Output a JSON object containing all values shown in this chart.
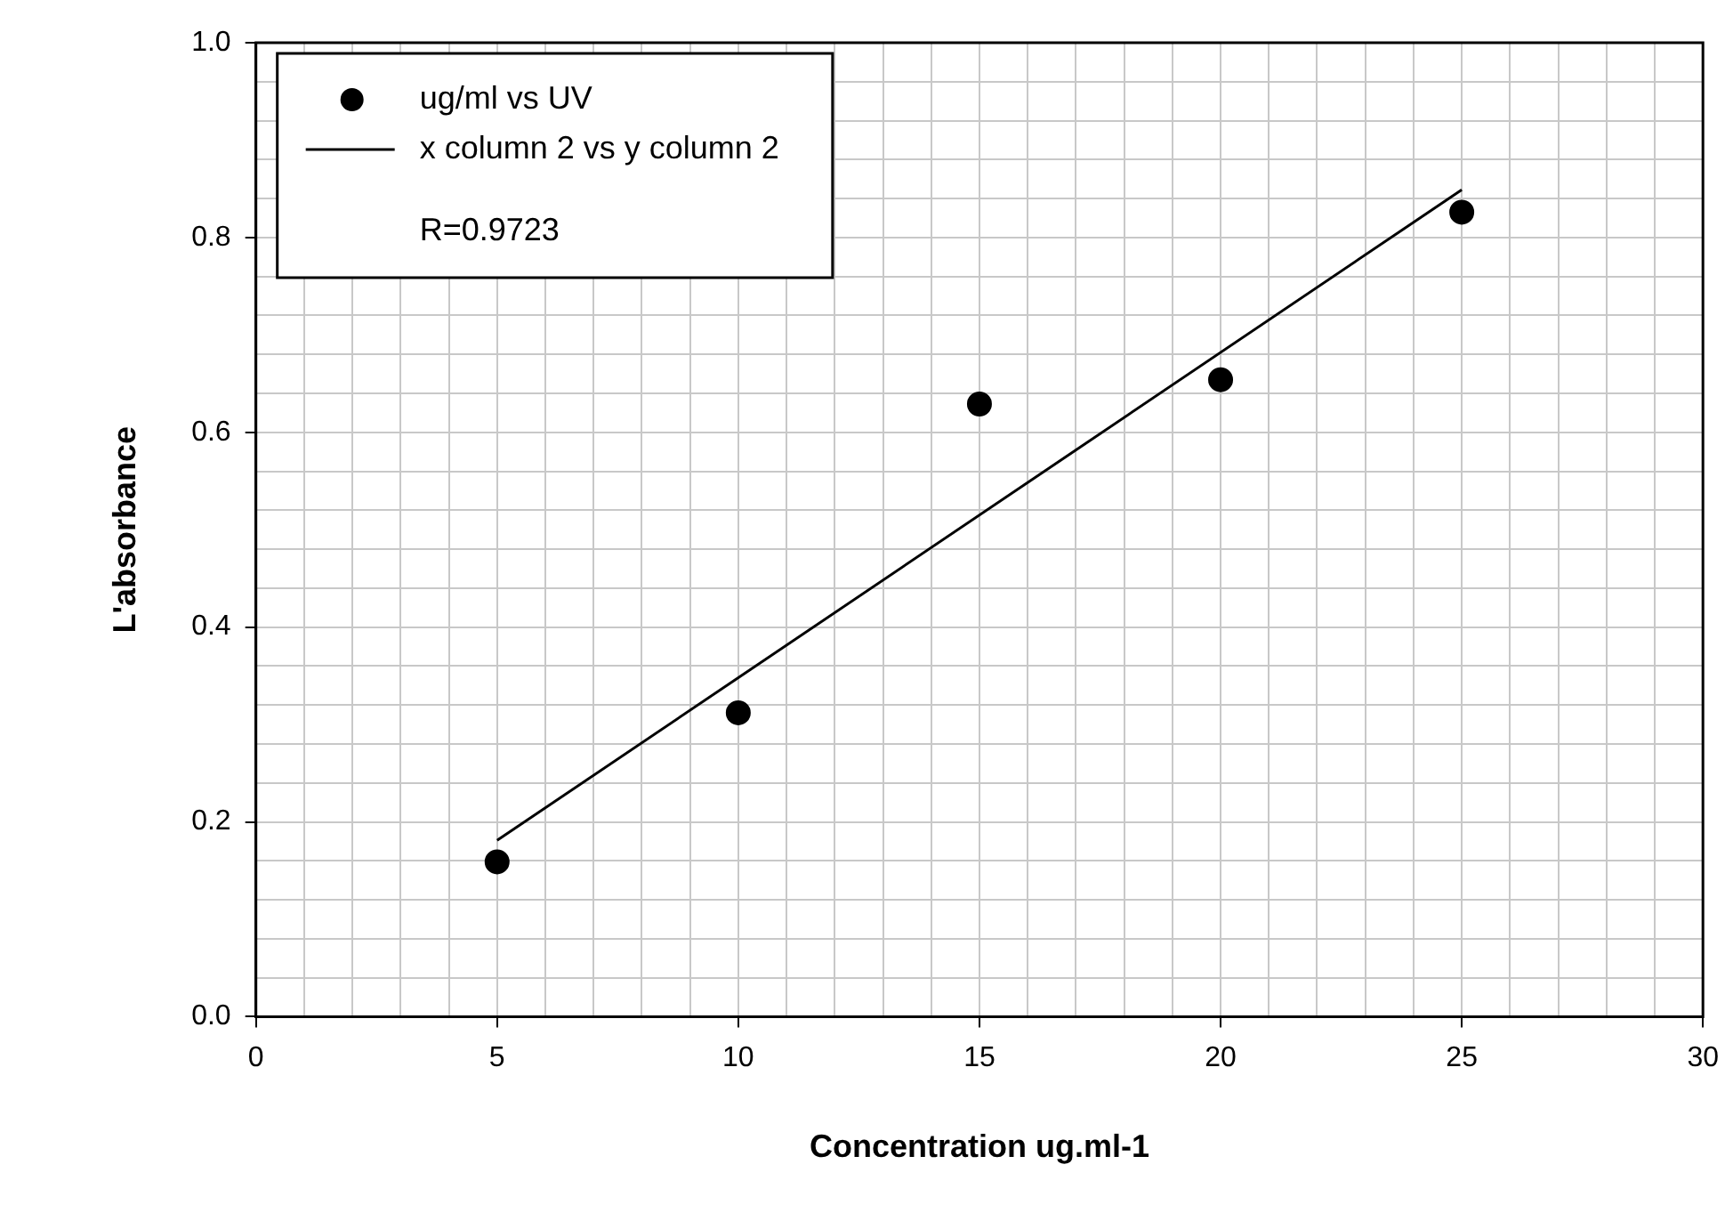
{
  "chart_data": {
    "type": "scatter",
    "xlabel": "Concentration ug.ml-1",
    "ylabel": "L'absorbance",
    "xlim": [
      0,
      30
    ],
    "ylim": [
      0,
      1
    ],
    "xticks": [
      0,
      {
        "value": 1,
        "label": null
      },
      {
        "value": 2,
        "label": null
      },
      {
        "value": 3,
        "label": null
      },
      {
        "value": 4,
        "label": null
      },
      5,
      {
        "value": 6,
        "label": null
      },
      {
        "value": 7,
        "label": null
      },
      {
        "value": 8,
        "label": null
      },
      {
        "value": 9,
        "label": null
      },
      10,
      {
        "value": 11,
        "label": null
      },
      {
        "value": 12,
        "label": null
      },
      {
        "value": 13,
        "label": null
      },
      {
        "value": 14,
        "label": null
      },
      15,
      {
        "value": 16,
        "label": null
      },
      {
        "value": 17,
        "label": null
      },
      {
        "value": 18,
        "label": null
      },
      {
        "value": 19,
        "label": null
      },
      20,
      {
        "value": 21,
        "label": null
      },
      {
        "value": 22,
        "label": null
      },
      {
        "value": 23,
        "label": null
      },
      {
        "value": 24,
        "label": null
      },
      25,
      {
        "value": 26,
        "label": null
      },
      {
        "value": 27,
        "label": null
      },
      {
        "value": 28,
        "label": null
      },
      {
        "value": 29,
        "label": null
      },
      30
    ],
    "yticks": [
      {
        "value": 0,
        "label": "0.0"
      },
      {
        "value": 0.04,
        "label": null
      },
      {
        "value": 0.08,
        "label": null
      },
      {
        "value": 0.12,
        "label": null
      },
      {
        "value": 0.16,
        "label": null
      },
      {
        "value": 0.2,
        "label": "0.2"
      },
      {
        "value": 0.24,
        "label": null
      },
      {
        "value": 0.28,
        "label": null
      },
      {
        "value": 0.32,
        "label": null
      },
      {
        "value": 0.36,
        "label": null
      },
      {
        "value": 0.4,
        "label": "0.4"
      },
      {
        "value": 0.44,
        "label": null
      },
      {
        "value": 0.48,
        "label": null
      },
      {
        "value": 0.52,
        "label": null
      },
      {
        "value": 0.56,
        "label": null
      },
      {
        "value": 0.6,
        "label": "0.6"
      },
      {
        "value": 0.64,
        "label": null
      },
      {
        "value": 0.68,
        "label": null
      },
      {
        "value": 0.72,
        "label": null
      },
      {
        "value": 0.76,
        "label": null
      },
      {
        "value": 0.8,
        "label": "0.8"
      },
      {
        "value": 0.84,
        "label": null
      },
      {
        "value": 0.88,
        "label": null
      },
      {
        "value": 0.92,
        "label": null
      },
      {
        "value": 0.96,
        "label": null
      },
      {
        "value": 1.0,
        "label": "1.0"
      }
    ],
    "grid": true,
    "legend": "top left",
    "annotations": [
      "R=0.9723"
    ],
    "series": [
      {
        "name": "ug/ml vs UV",
        "type": "scatter",
        "marker": "circle",
        "color": "#000000",
        "x": [
          5,
          10,
          15,
          20,
          25
        ],
        "values": [
          0.159,
          0.312,
          0.629,
          0.654,
          0.826
        ]
      },
      {
        "name": "x column 2 vs y column 2",
        "type": "line",
        "marker": "none",
        "color": "#000000",
        "x": [
          5,
          25
        ],
        "values": [
          0.181,
          0.849
        ]
      }
    ]
  }
}
